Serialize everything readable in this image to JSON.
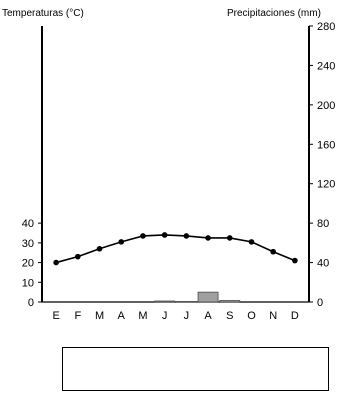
{
  "chart_data": {
    "type": "bar+line",
    "title": "",
    "left_axis": {
      "label": "Temperaturas (°C)",
      "ticks": [
        0,
        10,
        20,
        30,
        40
      ],
      "range": [
        0,
        140
      ]
    },
    "right_axis": {
      "label": "Precipitaciones (mm)",
      "ticks": [
        0,
        40,
        80,
        120,
        160,
        200,
        240,
        280
      ],
      "range": [
        0,
        280
      ]
    },
    "categories": [
      "E",
      "F",
      "M",
      "A",
      "M",
      "J",
      "J",
      "A",
      "S",
      "O",
      "N",
      "D"
    ],
    "series": [
      {
        "kind": "line",
        "axis": "left",
        "values": [
          20,
          23,
          27,
          30.5,
          33.5,
          34,
          33.5,
          32.5,
          32.5,
          30.5,
          25.5,
          21
        ],
        "color": "#000000"
      },
      {
        "kind": "bar",
        "axis": "right",
        "values": [
          0,
          0,
          0,
          0,
          0,
          1,
          0.5,
          10,
          1.5,
          0,
          0,
          0
        ],
        "color": "#a0a0a0"
      }
    ],
    "grid": false,
    "legend": "none"
  },
  "answer_box": {
    "text": ""
  }
}
